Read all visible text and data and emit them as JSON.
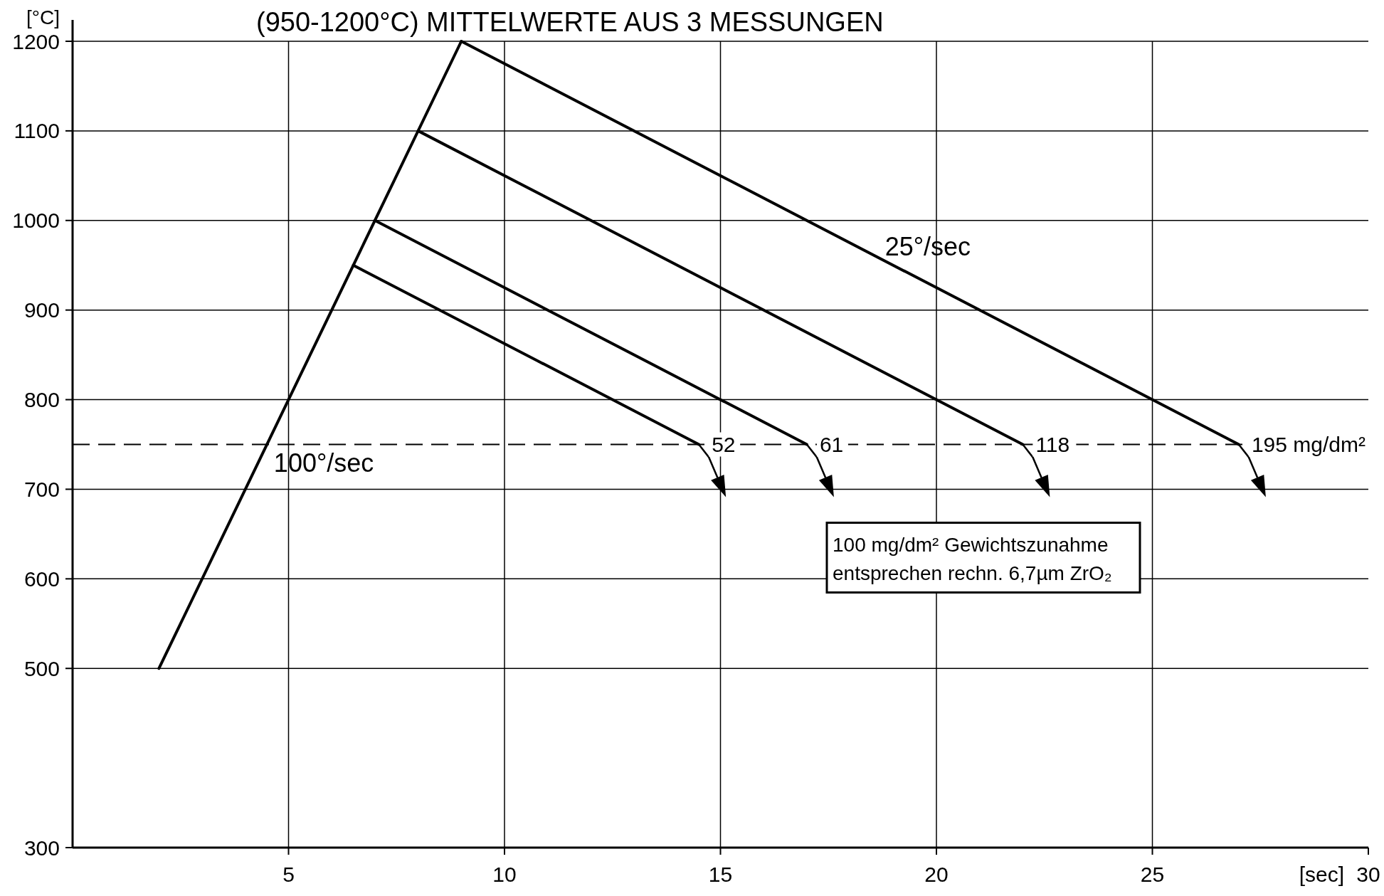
{
  "chart_data": {
    "type": "line",
    "title": "(950-1200°C) MITTELWERTE AUS 3 MESSUNGEN",
    "xlabel": "[sec]",
    "ylabel": "[°C]",
    "series": [
      {
        "color": "#000000",
        "x": [
          2,
          9
        ],
        "values": [
          500,
          1200
        ]
      },
      {
        "color": "#000000",
        "x": [
          9,
          27
        ],
        "values": [
          1200,
          750
        ]
      },
      {
        "color": "#000000",
        "x": [
          8,
          22
        ],
        "values": [
          1100,
          750
        ]
      },
      {
        "color": "#000000",
        "x": [
          7,
          17
        ],
        "values": [
          1000,
          750
        ]
      },
      {
        "color": "#000000",
        "x": [
          6.5,
          14.5
        ],
        "values": [
          950,
          750
        ]
      }
    ],
    "xlim": [
      0,
      30
    ],
    "xticks": [
      5,
      10,
      15,
      20,
      25,
      30
    ],
    "ylim": [
      300,
      1200
    ],
    "yticks": [
      300,
      500,
      600,
      700,
      800,
      900,
      1000,
      1100,
      1200
    ],
    "grid": true,
    "line_style": "solid",
    "ref_lines": [
      {
        "axis": "y",
        "value": 750,
        "line_style": "dashed",
        "color": "#000000"
      }
    ],
    "annotations": [
      "100°/sec",
      "25°/sec",
      {
        "text": "52",
        "x": 14.5,
        "y": 750
      },
      {
        "text": "61",
        "x": 17,
        "y": 750
      },
      {
        "text": "118",
        "x": 22,
        "y": 750
      },
      {
        "text": "195 mg/dm²",
        "x": 27,
        "y": 750
      },
      "100 mg/dm² Gewichtszunahme\nentsprechen rechn. 6,7µm ZrO₂"
    ]
  }
}
